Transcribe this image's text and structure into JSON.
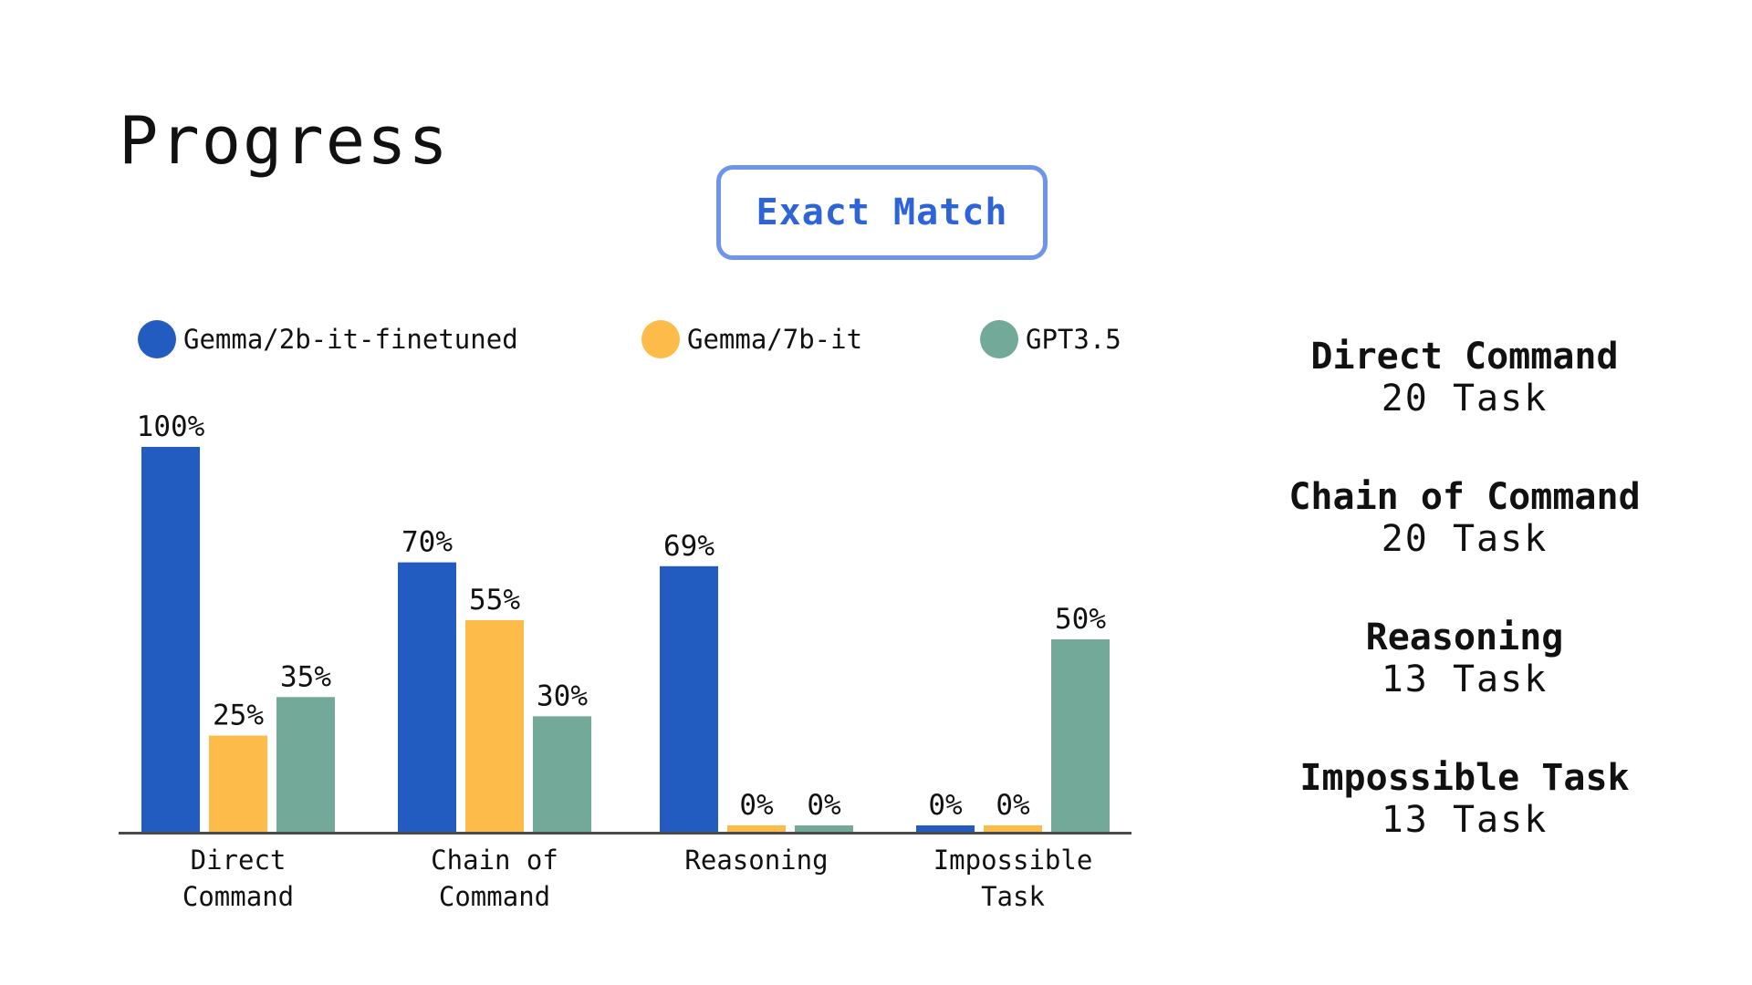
{
  "page": {
    "title": "Progress",
    "mode_button": "Exact Match"
  },
  "chart_data": {
    "type": "bar",
    "categories": [
      "Direct Command",
      "Chain of Command",
      "Reasoning",
      "Impossible Task"
    ],
    "category_labels": [
      [
        "Direct",
        "Command"
      ],
      [
        "Chain of",
        "Command"
      ],
      [
        "Reasoning"
      ],
      [
        "Impossible",
        "Task"
      ]
    ],
    "series": [
      {
        "name": "Gemma/2b-it-finetuned",
        "color": "#225cc0",
        "values": [
          100,
          70,
          69,
          0
        ]
      },
      {
        "name": "Gemma/7b-it",
        "color": "#fdbc49",
        "values": [
          25,
          55,
          0,
          0
        ]
      },
      {
        "name": "GPT3.5",
        "color": "#73a999",
        "values": [
          35,
          30,
          0,
          50
        ]
      }
    ],
    "value_suffix": "%",
    "ylim": [
      0,
      100
    ],
    "grid": false,
    "legend_position": "top"
  },
  "summary": [
    {
      "name": "Direct Command",
      "count": "20 Task"
    },
    {
      "name": "Chain of Command",
      "count": "20 Task"
    },
    {
      "name": "Reasoning",
      "count": "13 Task"
    },
    {
      "name": "Impossible Task",
      "count": "13 Task"
    }
  ]
}
